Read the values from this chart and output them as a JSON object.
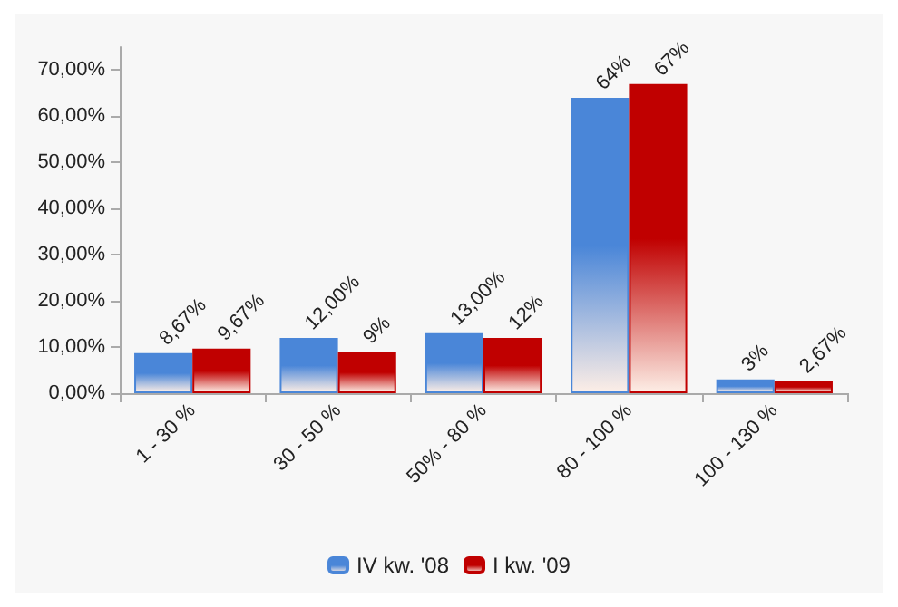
{
  "chart_data": {
    "type": "bar",
    "categories": [
      "1 - 30 %",
      "30 - 50 %",
      "50% - 80 %",
      "80 - 100 %",
      "100 - 130 %"
    ],
    "series": [
      {
        "name": "IV kw. '08",
        "color": "#4a86d8",
        "values": [
          8.67,
          12,
          13,
          64,
          3
        ],
        "value_labels": [
          "8,67%",
          "12,00%",
          "13,00%",
          "64%",
          "3%"
        ]
      },
      {
        "name": "I kw. '09",
        "color": "#c00000",
        "values": [
          9.67,
          9,
          12,
          67,
          2.67
        ],
        "value_labels": [
          "9,67%",
          "9%",
          "12%",
          "67%",
          "2,67%"
        ]
      }
    ],
    "ylim": [
      0,
      75
    ],
    "yticks": [
      {
        "value": 0,
        "label": "0,00%"
      },
      {
        "value": 10,
        "label": "10,00%"
      },
      {
        "value": 20,
        "label": "20,00%"
      },
      {
        "value": 30,
        "label": "30,00%"
      },
      {
        "value": 40,
        "label": "40,00%"
      },
      {
        "value": 50,
        "label": "50,00%"
      },
      {
        "value": 60,
        "label": "60,00%"
      },
      {
        "value": 70,
        "label": "70,00%"
      }
    ],
    "grid": false,
    "legend": "bottom"
  }
}
